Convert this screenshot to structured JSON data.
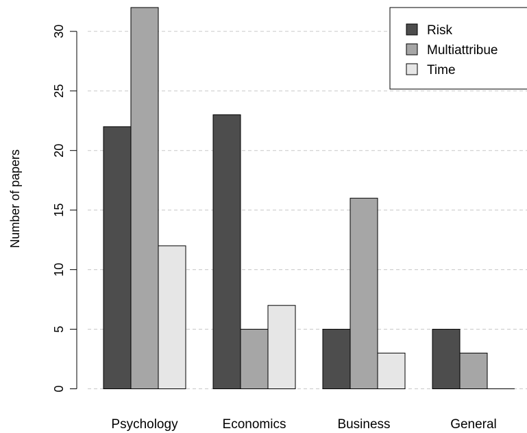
{
  "chart_data": {
    "type": "bar",
    "categories": [
      "Psychology",
      "Economics",
      "Business",
      "General"
    ],
    "series": [
      {
        "name": "Risk",
        "values": [
          22,
          23,
          5,
          5
        ],
        "color": "#4d4d4d"
      },
      {
        "name": "Multiattribue",
        "values": [
          32,
          5,
          16,
          3
        ],
        "color": "#a6a6a6"
      },
      {
        "name": "Time",
        "values": [
          12,
          7,
          3,
          0
        ],
        "color": "#e6e6e6"
      }
    ],
    "ylabel": "Number of papers",
    "xlabel": "",
    "ylim": [
      0,
      32
    ],
    "yticks": [
      0,
      5,
      10,
      15,
      20,
      25,
      30
    ],
    "grid": "horizontal-dashed",
    "legend": "top-right"
  }
}
